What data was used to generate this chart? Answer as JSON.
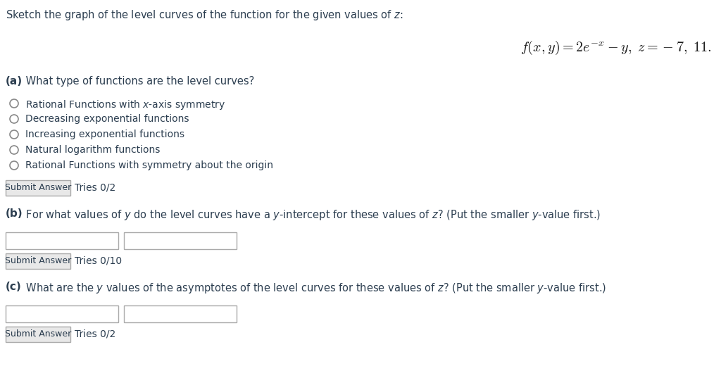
{
  "background_color": "#ffffff",
  "title_text": "Sketch the graph of the level curves of the function for the given values of $z$:",
  "formula": "$f(x,y) = 2e^{-x} - y, \\; z = -7, \\; 11.$",
  "part_a_label": "(a)",
  "part_a_question": " What type of functions are the level curves?",
  "part_a_options": [
    "Rational Functions with $x$-axis symmetry",
    "Decreasing exponential functions",
    "Increasing exponential functions",
    "Natural logarithm functions",
    "Rational Functions with symmetry about the origin"
  ],
  "part_b_label": "(b)",
  "part_b_question": " For what values of $y$ do the level curves have a $y$-intercept for these values of $z$? (Put the smaller $y$-value first.)",
  "part_b_tries": "Tries 0/10",
  "part_c_label": "(c)",
  "part_c_question": " What are the $y$ values of the asymptotes of the level curves for these values of $z$? (Put the smaller $y$-value first.)",
  "part_c_tries": "Tries 0/2",
  "submit_label": "Submit Answer",
  "submit_tries_a": "Tries 0/2",
  "submit_tries_b": "Tries 0/10",
  "submit_tries_c": "Tries 0/2",
  "text_color": "#2c3e50",
  "formula_color": "#1a1a1a",
  "radio_color": "#888888",
  "btn_face": "#e8e8e8",
  "btn_edge": "#aaaaaa",
  "box_edge": "#aaaaaa"
}
